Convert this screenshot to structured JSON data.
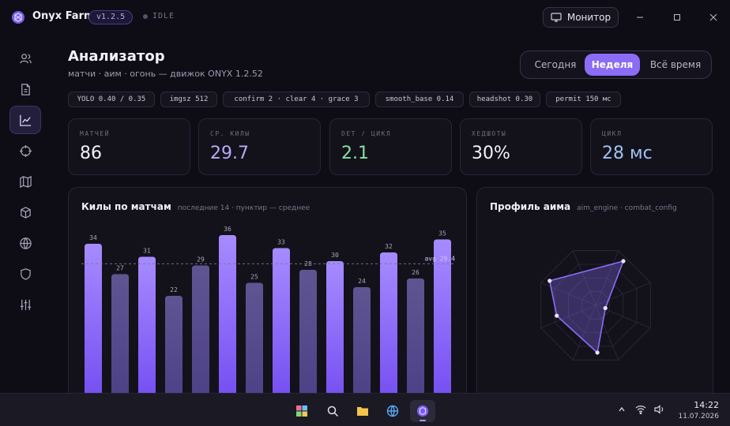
{
  "titlebar": {
    "app_name": "Onyx Farm",
    "version": "v1.2.5",
    "status": "IDLE",
    "monitor_label": "Монитор"
  },
  "header": {
    "title": "Анализатор",
    "subtitle": "матчи · аим · огонь — движок ONYX 1.2.52"
  },
  "range": {
    "options": [
      "Сегодня",
      "Неделя",
      "Всё время"
    ],
    "selected": "Неделя"
  },
  "chips": [
    "YOLO 0.40 / 0.35",
    "imgsz 512",
    "confirm 2 · clear 4 · grace 3",
    "smooth_base 0.14",
    "headshot 0.30",
    "permit 150 мс"
  ],
  "stats": [
    {
      "label": "МАТЧЕЙ",
      "value": "86",
      "color": "#f3f1fa"
    },
    {
      "label": "СР. КИЛЫ",
      "value": "29.7",
      "color": "#b8a9f7"
    },
    {
      "label": "DET / ЦИКЛ",
      "value": "2.1",
      "color": "#86e0a6"
    },
    {
      "label": "ХЕДШОТЫ",
      "value": "30%",
      "color": "#f3f1fa"
    },
    {
      "label": "ЦИКЛ",
      "value": "28 мс",
      "color": "#9fc2f5"
    }
  ],
  "kills_panel": {
    "title": "Килы по матчам",
    "subtitle": "последние 14 · пунктир — среднее"
  },
  "chart_data": {
    "type": "bar",
    "title": "Килы по матчам",
    "values": [
      34,
      27,
      31,
      22,
      29,
      36,
      25,
      33,
      28,
      30,
      24,
      32,
      26,
      35
    ],
    "average": 29.4,
    "average_label": "avg 29.4",
    "highlight_color": "#8b6cf6",
    "muted_color": "#5b4f8f",
    "ylim": [
      0,
      36
    ]
  },
  "aim_panel": {
    "title": "Профиль аима",
    "subtitle": "aim_engine · combat_config",
    "radar_values": [
      0.88,
      0.17,
      0.8,
      0.68,
      0.88
    ],
    "color": "#8b6cf6"
  },
  "sidebar": {
    "items": [
      "users-icon",
      "file-icon",
      "chart-icon",
      "crosshair-icon",
      "map-icon",
      "cube-icon",
      "globe-icon",
      "shield-icon",
      "sliders-icon"
    ],
    "active": "chart-icon"
  },
  "taskbar": {
    "time": "14:22",
    "date": "11.07.2026"
  }
}
